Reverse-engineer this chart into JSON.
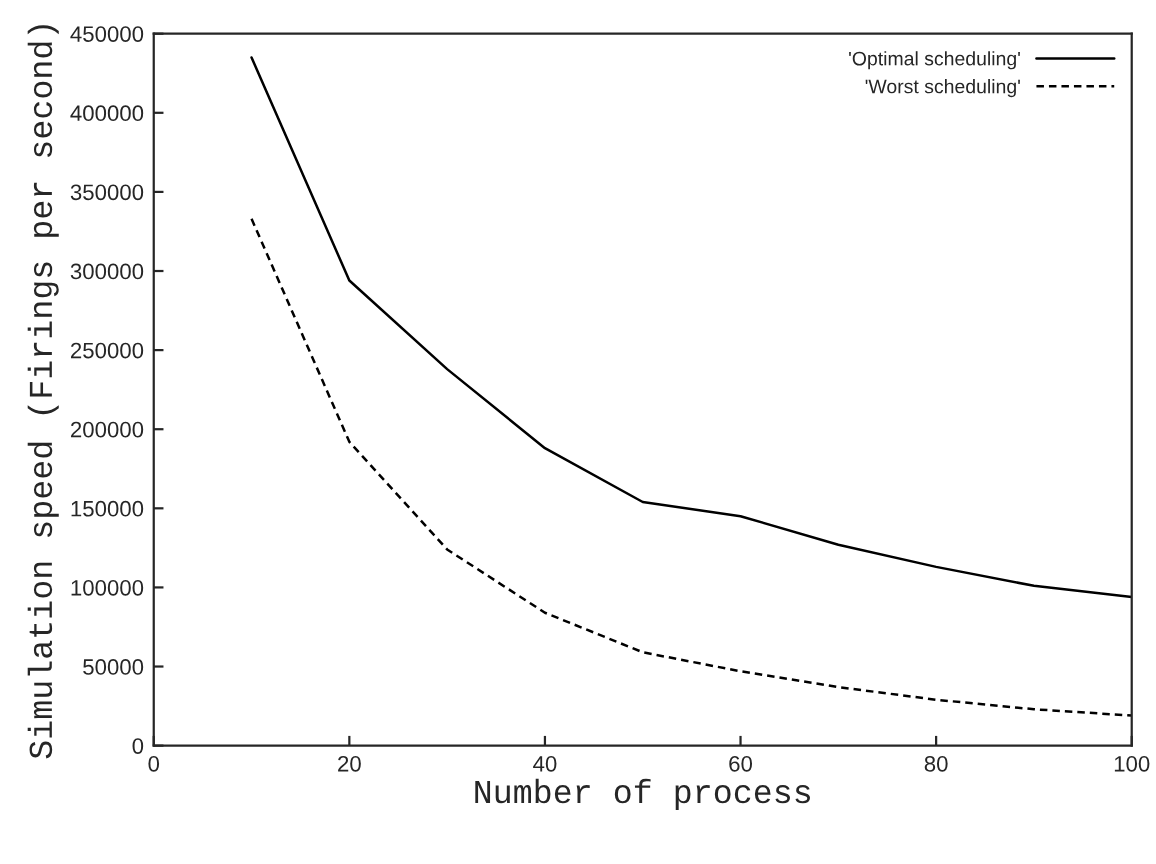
{
  "chart_data": {
    "type": "line",
    "xlabel": "Number of process",
    "ylabel": "Simulation speed (Firings per second)",
    "x": [
      10,
      20,
      30,
      40,
      50,
      60,
      70,
      80,
      90,
      100
    ],
    "series": [
      {
        "name": "'Optimal scheduling'",
        "color": "#000000",
        "line_style": "solid",
        "values": [
          435000,
          294000,
          238000,
          188000,
          154000,
          145000,
          127000,
          113000,
          101000,
          94000
        ]
      },
      {
        "name": "'Worst scheduling'",
        "color": "#000000",
        "line_style": "dashed",
        "values": [
          333000,
          192000,
          124000,
          84000,
          59000,
          47000,
          37000,
          29000,
          23000,
          19000
        ]
      }
    ],
    "xlim": [
      0,
      100
    ],
    "xticks": [
      0,
      20,
      40,
      60,
      80,
      100
    ],
    "ylim": [
      0,
      450000
    ],
    "yticks": [
      0,
      50000,
      100000,
      150000,
      200000,
      250000,
      300000,
      350000,
      400000,
      450000
    ],
    "grid": false,
    "legend": "top right",
    "marker": "none"
  }
}
